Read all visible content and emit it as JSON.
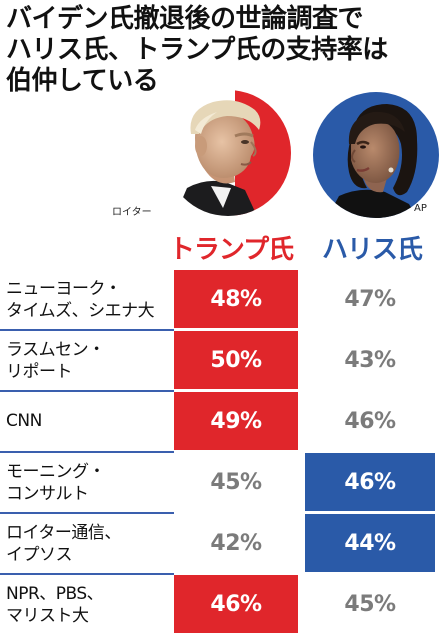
{
  "headline": {
    "lines": [
      "バイデン氏撤退後の世論調査で",
      "ハリス氏、トランプ氏の支持率は",
      "伯仲している"
    ]
  },
  "photos": {
    "trump_credit": "ロイター",
    "harris_credit": "AP"
  },
  "columns": {
    "trump": "トランプ氏",
    "harris": "ハリス氏"
  },
  "colors": {
    "trump_red": "#e0262b",
    "harris_blue": "#2a5aa8",
    "gray_text": "#7b7b7b",
    "divider_blue": "#3a5fae"
  },
  "polls": [
    {
      "outlet_lines": [
        "ニューヨーク・",
        "タイムズ、シエナ大"
      ],
      "trump": "48%",
      "harris": "47%",
      "leader": "trump"
    },
    {
      "outlet_lines": [
        "ラスムセン・",
        "リポート"
      ],
      "trump": "50%",
      "harris": "43%",
      "leader": "trump"
    },
    {
      "outlet_lines": [
        "CNN"
      ],
      "trump": "49%",
      "harris": "46%",
      "leader": "trump"
    },
    {
      "outlet_lines": [
        "モーニング・",
        "コンサルト"
      ],
      "trump": "45%",
      "harris": "46%",
      "leader": "harris"
    },
    {
      "outlet_lines": [
        "ロイター通信、",
        "イプソス"
      ],
      "trump": "42%",
      "harris": "44%",
      "leader": "harris"
    },
    {
      "outlet_lines": [
        "NPR、PBS、",
        "マリスト大"
      ],
      "trump": "46%",
      "harris": "45%",
      "leader": "trump"
    }
  ]
}
